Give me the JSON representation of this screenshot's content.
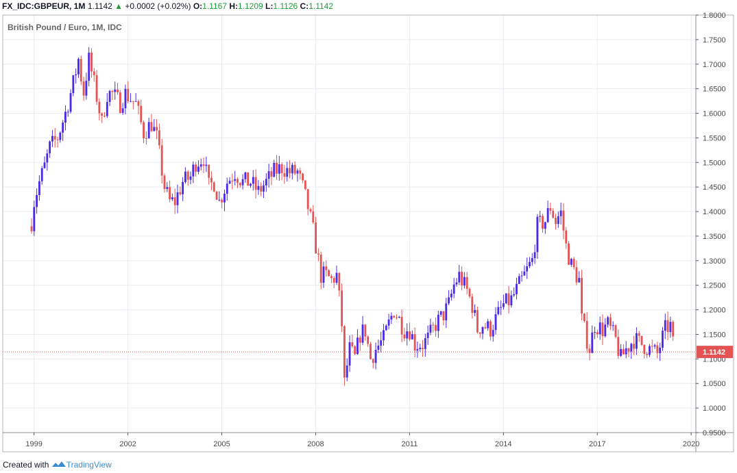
{
  "header": {
    "symbol": "FX_IDC:GBPEUR, 1M",
    "last": "1.1142",
    "change_arrow": "▲",
    "change": "+0.0002 (+0.02%)",
    "open_label": "O:",
    "open": "1.1167",
    "high_label": "H:",
    "high": "1.1209",
    "low_label": "L:",
    "low": "1.1126",
    "close_label": "C:",
    "close": "1.1142"
  },
  "footer": {
    "prefix": "Created with",
    "brand": "TradingView",
    "logo_icon": "tradingview-logo-icon"
  },
  "colors": {
    "up": "#4b2ae6",
    "down": "#e45454",
    "grid": "#e8ecf1",
    "price_tag": "#e35353"
  },
  "chart_data": {
    "type": "candlestick",
    "title": "British Pound / Euro, 1M, IDC",
    "timeframe": "1M",
    "x_ticks": [
      "1999",
      "2002",
      "2005",
      "2008",
      "2011",
      "2014",
      "2017",
      "2020"
    ],
    "y_ticks": [
      "1.8000",
      "1.7500",
      "1.7000",
      "1.6500",
      "1.6000",
      "1.5500",
      "1.5000",
      "1.4500",
      "1.4000",
      "1.3500",
      "1.3000",
      "1.2500",
      "1.2000",
      "1.1500",
      "1.1000",
      "1.0500",
      "1.0000",
      "0.9500"
    ],
    "ylim": [
      0.95,
      1.8
    ],
    "xlim": [
      1998.0,
      2020.15
    ],
    "last_price": "1.1142",
    "series_close": [
      [
        1998.92,
        1.38
      ],
      [
        1999.0,
        1.42
      ],
      [
        1999.17,
        1.46
      ],
      [
        1999.33,
        1.49
      ],
      [
        1999.5,
        1.53
      ],
      [
        1999.75,
        1.55
      ],
      [
        2000.0,
        1.6
      ],
      [
        2000.25,
        1.66
      ],
      [
        2000.42,
        1.71
      ],
      [
        2000.58,
        1.64
      ],
      [
        2000.75,
        1.71
      ],
      [
        2000.92,
        1.66
      ],
      [
        2001.17,
        1.58
      ],
      [
        2001.33,
        1.64
      ],
      [
        2001.5,
        1.64
      ],
      [
        2001.75,
        1.62
      ],
      [
        2001.92,
        1.64
      ],
      [
        2002.25,
        1.62
      ],
      [
        2002.5,
        1.56
      ],
      [
        2002.75,
        1.58
      ],
      [
        2002.92,
        1.55
      ],
      [
        2003.17,
        1.45
      ],
      [
        2003.33,
        1.42
      ],
      [
        2003.5,
        1.42
      ],
      [
        2003.75,
        1.46
      ],
      [
        2004.0,
        1.47
      ],
      [
        2004.17,
        1.5
      ],
      [
        2004.42,
        1.51
      ],
      [
        2004.58,
        1.45
      ],
      [
        2004.75,
        1.46
      ],
      [
        2004.92,
        1.42
      ],
      [
        2005.17,
        1.46
      ],
      [
        2005.42,
        1.48
      ],
      [
        2005.67,
        1.46
      ],
      [
        2005.92,
        1.46
      ],
      [
        2006.17,
        1.44
      ],
      [
        2006.42,
        1.46
      ],
      [
        2006.67,
        1.48
      ],
      [
        2006.92,
        1.49
      ],
      [
        2007.17,
        1.48
      ],
      [
        2007.42,
        1.48
      ],
      [
        2007.58,
        1.45
      ],
      [
        2007.75,
        1.41
      ],
      [
        2007.92,
        1.36
      ],
      [
        2008.17,
        1.27
      ],
      [
        2008.33,
        1.27
      ],
      [
        2008.5,
        1.26
      ],
      [
        2008.67,
        1.27
      ],
      [
        2008.83,
        1.18
      ],
      [
        2008.92,
        1.05
      ],
      [
        2009.08,
        1.12
      ],
      [
        2009.25,
        1.1
      ],
      [
        2009.42,
        1.15
      ],
      [
        2009.58,
        1.16
      ],
      [
        2009.75,
        1.1
      ],
      [
        2009.92,
        1.12
      ],
      [
        2010.17,
        1.14
      ],
      [
        2010.33,
        1.17
      ],
      [
        2010.5,
        1.2
      ],
      [
        2010.67,
        1.18
      ],
      [
        2010.83,
        1.16
      ],
      [
        2011.0,
        1.16
      ],
      [
        2011.17,
        1.13
      ],
      [
        2011.42,
        1.13
      ],
      [
        2011.58,
        1.14
      ],
      [
        2011.83,
        1.17
      ],
      [
        2012.08,
        1.19
      ],
      [
        2012.25,
        1.21
      ],
      [
        2012.42,
        1.25
      ],
      [
        2012.58,
        1.27
      ],
      [
        2012.83,
        1.24
      ],
      [
        2013.0,
        1.21
      ],
      [
        2013.17,
        1.16
      ],
      [
        2013.33,
        1.17
      ],
      [
        2013.58,
        1.16
      ],
      [
        2013.83,
        1.19
      ],
      [
        2014.0,
        1.21
      ],
      [
        2014.25,
        1.22
      ],
      [
        2014.5,
        1.25
      ],
      [
        2014.75,
        1.28
      ],
      [
        2014.92,
        1.3
      ],
      [
        2015.08,
        1.37
      ],
      [
        2015.33,
        1.38
      ],
      [
        2015.5,
        1.41
      ],
      [
        2015.67,
        1.38
      ],
      [
        2015.83,
        1.4
      ],
      [
        2016.0,
        1.33
      ],
      [
        2016.17,
        1.29
      ],
      [
        2016.42,
        1.26
      ],
      [
        2016.5,
        1.18
      ],
      [
        2016.75,
        1.12
      ],
      [
        2016.92,
        1.17
      ],
      [
        2017.17,
        1.16
      ],
      [
        2017.33,
        1.17
      ],
      [
        2017.58,
        1.14
      ],
      [
        2017.75,
        1.1
      ],
      [
        2017.92,
        1.12
      ],
      [
        2018.17,
        1.14
      ],
      [
        2018.42,
        1.13
      ],
      [
        2018.67,
        1.12
      ],
      [
        2018.92,
        1.11
      ],
      [
        2019.17,
        1.16
      ],
      [
        2019.33,
        1.17
      ],
      [
        2019.42,
        1.13
      ],
      [
        2019.5,
        1.1142
      ]
    ]
  }
}
